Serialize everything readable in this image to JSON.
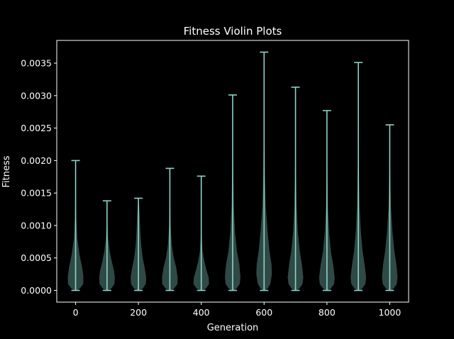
{
  "chart_data": {
    "type": "violin",
    "title": "Fitness Violin Plots",
    "xlabel": "Generation",
    "ylabel": "Fitness",
    "xlim": [
      -60,
      1060
    ],
    "ylim": [
      -0.00018,
      0.00385
    ],
    "xticks": [
      0,
      200,
      400,
      600,
      800,
      1000
    ],
    "xtick_labels": [
      "0",
      "200",
      "400",
      "600",
      "800",
      "1000"
    ],
    "yticks": [
      0,
      0.0005,
      0.001,
      0.0015,
      0.002,
      0.0025,
      0.003,
      0.0035
    ],
    "ytick_labels": [
      "0.0000",
      "0.0005",
      "0.0010",
      "0.0015",
      "0.0020",
      "0.0025",
      "0.0030",
      "0.0035"
    ],
    "grid": false,
    "legend": false,
    "colors": {
      "background": "#000000",
      "violin_fill": "#2f4a46",
      "violin_lines": "#8dd3c7",
      "axes": "#ffffff"
    },
    "series": [
      {
        "x": 0,
        "min": 0.0,
        "max": 0.002,
        "profile": [
          [
            0.0,
            0.1
          ],
          [
            3e-05,
            0.55
          ],
          [
            0.0001,
            0.98
          ],
          [
            0.00022,
            1.0
          ],
          [
            0.00035,
            0.85
          ],
          [
            0.00055,
            0.5
          ],
          [
            0.0008,
            0.22
          ],
          [
            0.0011,
            0.1
          ],
          [
            0.0015,
            0.04
          ],
          [
            0.002,
            0.0
          ]
        ]
      },
      {
        "x": 100,
        "min": 0.0,
        "max": 0.00138,
        "profile": [
          [
            0.0,
            0.1
          ],
          [
            3e-05,
            0.55
          ],
          [
            0.0001,
            0.95
          ],
          [
            0.0002,
            1.0
          ],
          [
            0.0003,
            0.9
          ],
          [
            0.00045,
            0.6
          ],
          [
            0.0006,
            0.35
          ],
          [
            0.0008,
            0.15
          ],
          [
            0.001,
            0.06
          ],
          [
            0.00138,
            0.0
          ]
        ]
      },
      {
        "x": 200,
        "min": 0.0,
        "max": 0.00142,
        "profile": [
          [
            0.0,
            0.1
          ],
          [
            3e-05,
            0.55
          ],
          [
            0.0001,
            0.95
          ],
          [
            0.0002,
            1.0
          ],
          [
            0.00035,
            0.8
          ],
          [
            0.0005,
            0.55
          ],
          [
            0.0007,
            0.35
          ],
          [
            0.0009,
            0.25
          ],
          [
            0.0011,
            0.18
          ],
          [
            0.0013,
            0.1
          ],
          [
            0.00142,
            0.0
          ]
        ]
      },
      {
        "x": 300,
        "min": 0.0,
        "max": 0.00188,
        "profile": [
          [
            0.0,
            0.1
          ],
          [
            3e-05,
            0.55
          ],
          [
            0.0001,
            0.98
          ],
          [
            0.0002,
            1.0
          ],
          [
            0.00035,
            0.82
          ],
          [
            0.0005,
            0.5
          ],
          [
            0.0007,
            0.25
          ],
          [
            0.001,
            0.1
          ],
          [
            0.0014,
            0.04
          ],
          [
            0.00188,
            0.0
          ]
        ]
      },
      {
        "x": 400,
        "min": 0.0,
        "max": 0.00176,
        "profile": [
          [
            0.0,
            0.1
          ],
          [
            3e-05,
            0.6
          ],
          [
            0.0001,
            1.0
          ],
          [
            0.0002,
            0.95
          ],
          [
            0.0003,
            0.7
          ],
          [
            0.00045,
            0.4
          ],
          [
            0.0006,
            0.18
          ],
          [
            0.0008,
            0.08
          ],
          [
            0.0012,
            0.03
          ],
          [
            0.00176,
            0.0
          ]
        ]
      },
      {
        "x": 500,
        "min": 0.0,
        "max": 0.00301,
        "profile": [
          [
            0.0,
            0.1
          ],
          [
            3e-05,
            0.5
          ],
          [
            0.0001,
            0.9
          ],
          [
            0.0002,
            1.0
          ],
          [
            0.0004,
            0.85
          ],
          [
            0.0006,
            0.55
          ],
          [
            0.0009,
            0.3
          ],
          [
            0.0013,
            0.14
          ],
          [
            0.002,
            0.05
          ],
          [
            0.00301,
            0.0
          ]
        ]
      },
      {
        "x": 600,
        "min": 0.0,
        "max": 0.00367,
        "profile": [
          [
            0.0,
            0.1
          ],
          [
            3e-05,
            0.45
          ],
          [
            0.0001,
            0.8
          ],
          [
            0.00025,
            1.0
          ],
          [
            0.0004,
            0.95
          ],
          [
            0.0006,
            0.7
          ],
          [
            0.0009,
            0.45
          ],
          [
            0.0013,
            0.22
          ],
          [
            0.0018,
            0.1
          ],
          [
            0.0026,
            0.04
          ],
          [
            0.00367,
            0.0
          ]
        ]
      },
      {
        "x": 700,
        "min": 0.0,
        "max": 0.00313,
        "profile": [
          [
            0.0,
            0.1
          ],
          [
            3e-05,
            0.5
          ],
          [
            0.0001,
            0.9
          ],
          [
            0.0002,
            1.0
          ],
          [
            0.0004,
            0.82
          ],
          [
            0.0006,
            0.55
          ],
          [
            0.0009,
            0.3
          ],
          [
            0.0013,
            0.14
          ],
          [
            0.002,
            0.05
          ],
          [
            0.00313,
            0.0
          ]
        ]
      },
      {
        "x": 800,
        "min": 0.0,
        "max": 0.00277,
        "profile": [
          [
            0.0,
            0.1
          ],
          [
            3e-05,
            0.5
          ],
          [
            0.0001,
            0.92
          ],
          [
            0.0002,
            1.0
          ],
          [
            0.0004,
            0.8
          ],
          [
            0.0006,
            0.5
          ],
          [
            0.0009,
            0.28
          ],
          [
            0.0013,
            0.12
          ],
          [
            0.002,
            0.04
          ],
          [
            0.00277,
            0.0
          ]
        ]
      },
      {
        "x": 900,
        "min": 0.0,
        "max": 0.00351,
        "profile": [
          [
            0.0,
            0.1
          ],
          [
            3e-05,
            0.5
          ],
          [
            0.0001,
            0.9
          ],
          [
            0.0002,
            1.0
          ],
          [
            0.0004,
            0.8
          ],
          [
            0.0006,
            0.55
          ],
          [
            0.0009,
            0.33
          ],
          [
            0.0013,
            0.16
          ],
          [
            0.002,
            0.06
          ],
          [
            0.00351,
            0.0
          ]
        ]
      },
      {
        "x": 1000,
        "min": 0.0,
        "max": 0.00255,
        "profile": [
          [
            0.0,
            0.1
          ],
          [
            3e-05,
            0.5
          ],
          [
            0.0001,
            0.9
          ],
          [
            0.0002,
            1.0
          ],
          [
            0.0004,
            0.85
          ],
          [
            0.0006,
            0.6
          ],
          [
            0.0009,
            0.35
          ],
          [
            0.0013,
            0.15
          ],
          [
            0.0019,
            0.05
          ],
          [
            0.00255,
            0.0
          ]
        ]
      }
    ]
  }
}
